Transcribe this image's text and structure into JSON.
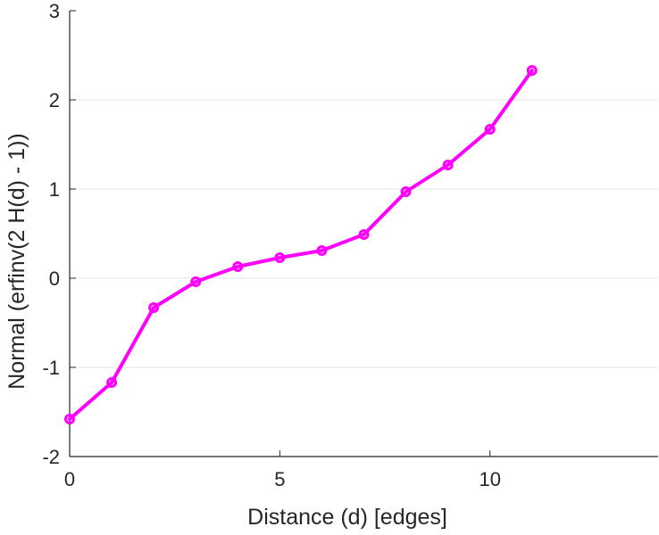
{
  "chart_data": {
    "type": "line",
    "title": "",
    "xlabel": "Distance (d) [edges]",
    "ylabel": "Normal (erfinv(2 H(d) - 1))",
    "xlim": [
      0,
      14
    ],
    "ylim": [
      -2,
      3
    ],
    "xticks": [
      0,
      5,
      10
    ],
    "yticks": [
      -2,
      -1,
      0,
      1,
      2,
      3
    ],
    "grid": "horizontal",
    "series": [
      {
        "color": "#ff00ff",
        "marker": "circle",
        "x": [
          0,
          1,
          2,
          3,
          4,
          5,
          6,
          7,
          8,
          9,
          10,
          11
        ],
        "y": [
          -1.58,
          -1.17,
          -0.33,
          -0.04,
          0.13,
          0.23,
          0.31,
          0.49,
          0.97,
          1.27,
          1.67,
          2.33
        ]
      }
    ]
  }
}
